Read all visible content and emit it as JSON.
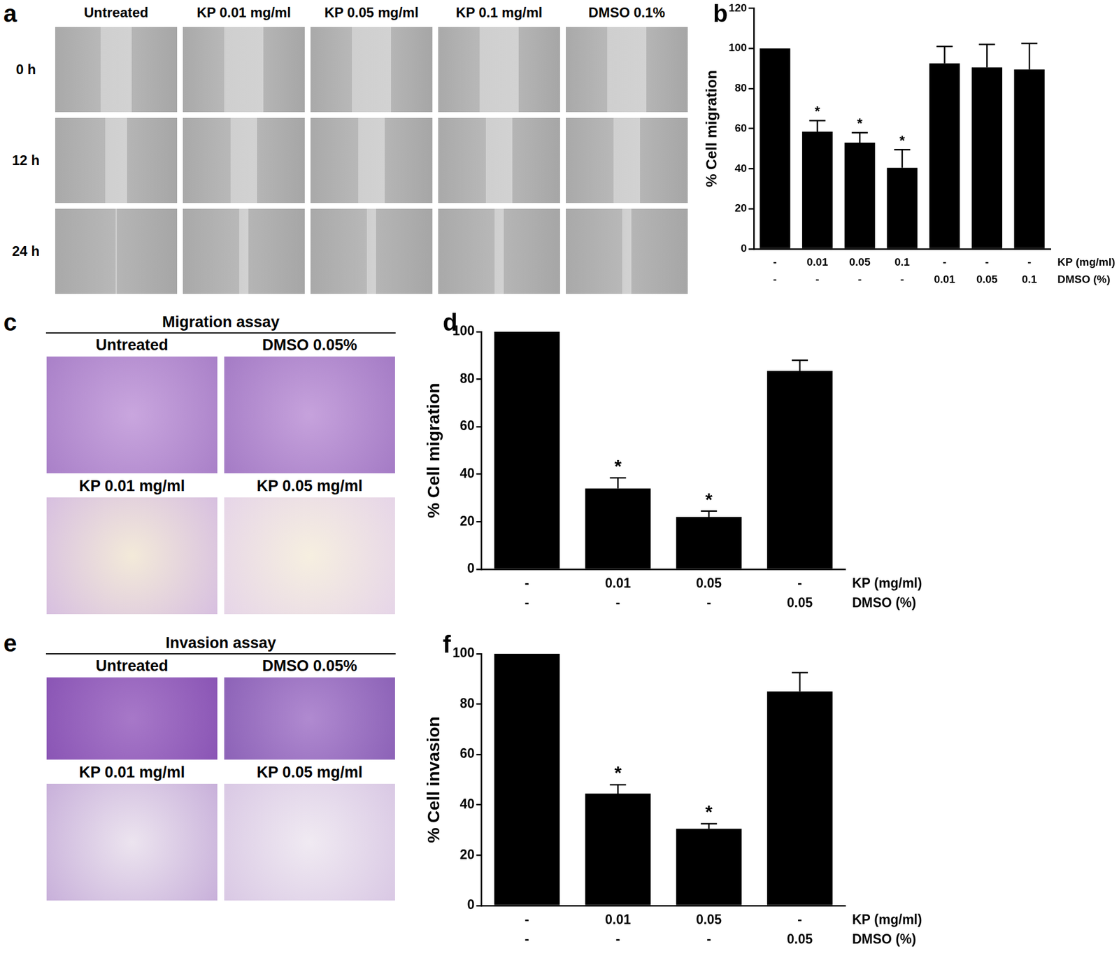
{
  "image_panels": [
    {
      "panel": "a",
      "columns": [
        "Untreated",
        "KP 0.01 mg/ml",
        "KP 0.05 mg/ml",
        "KP 0.1 mg/ml",
        "DMSO 0.1%"
      ],
      "rows": [
        "0 h",
        "12 h",
        "24 h"
      ]
    },
    {
      "panel": "c",
      "title": "Migration assay",
      "images": [
        "Untreated",
        "DMSO 0.05%",
        "KP 0.01 mg/ml",
        "KP 0.05 mg/ml"
      ]
    },
    {
      "panel": "e",
      "title": "Invasion assay",
      "images": [
        "Untreated",
        "DMSO 0.05%",
        "KP 0.01 mg/ml",
        "KP 0.05 mg/ml"
      ]
    }
  ],
  "chart_data": [
    {
      "panel": "b",
      "type": "bar",
      "y_label": "% Cell migration",
      "categories": [
        [
          "-",
          "-"
        ],
        [
          "0.01",
          "-"
        ],
        [
          "0.05",
          "-"
        ],
        [
          "0.1",
          "-"
        ],
        [
          "-",
          "0.01"
        ],
        [
          "-",
          "0.05"
        ],
        [
          "-",
          "0.1"
        ]
      ],
      "category_rows": [
        "KP (mg/ml)",
        "DMSO (%)"
      ],
      "values": [
        100,
        58.5,
        53,
        40.5,
        92.5,
        90.5,
        89.5
      ],
      "errors": [
        0,
        5.5,
        5,
        9,
        8.5,
        11.5,
        13
      ],
      "annotations": [
        null,
        "*",
        "*",
        "*",
        null,
        null,
        null
      ],
      "color": "#000000",
      "ylim": [
        0,
        120
      ],
      "yticks": [
        0,
        20,
        40,
        60,
        80,
        100,
        120
      ],
      "grid": false
    },
    {
      "panel": "d",
      "type": "bar",
      "y_label": "% Cell migration",
      "categories": [
        [
          "-",
          "-"
        ],
        [
          "0.01",
          "-"
        ],
        [
          "0.05",
          "-"
        ],
        [
          "-",
          "0.05"
        ]
      ],
      "category_rows": [
        "KP (mg/ml)",
        "DMSO (%)"
      ],
      "values": [
        100,
        34,
        22,
        83.5
      ],
      "errors": [
        0,
        4.5,
        2.5,
        4.5
      ],
      "annotations": [
        null,
        "*",
        "*",
        null
      ],
      "color": "#000000",
      "ylim": [
        0,
        100
      ],
      "yticks": [
        0,
        20,
        40,
        60,
        80,
        100
      ],
      "grid": false
    },
    {
      "panel": "f",
      "type": "bar",
      "y_label": "% Cell invasion",
      "categories": [
        [
          "-",
          "-"
        ],
        [
          "0.01",
          "-"
        ],
        [
          "0.05",
          "-"
        ],
        [
          "-",
          "0.05"
        ]
      ],
      "category_rows": [
        "KP (mg/ml)",
        "DMSO (%)"
      ],
      "values": [
        100,
        44.5,
        30.5,
        85
      ],
      "errors": [
        0,
        3.5,
        2,
        7.5
      ],
      "annotations": [
        null,
        "*",
        "*",
        null
      ],
      "color": "#000000",
      "ylim": [
        0,
        100
      ],
      "yticks": [
        0,
        20,
        40,
        60,
        80,
        100
      ],
      "grid": false
    }
  ]
}
